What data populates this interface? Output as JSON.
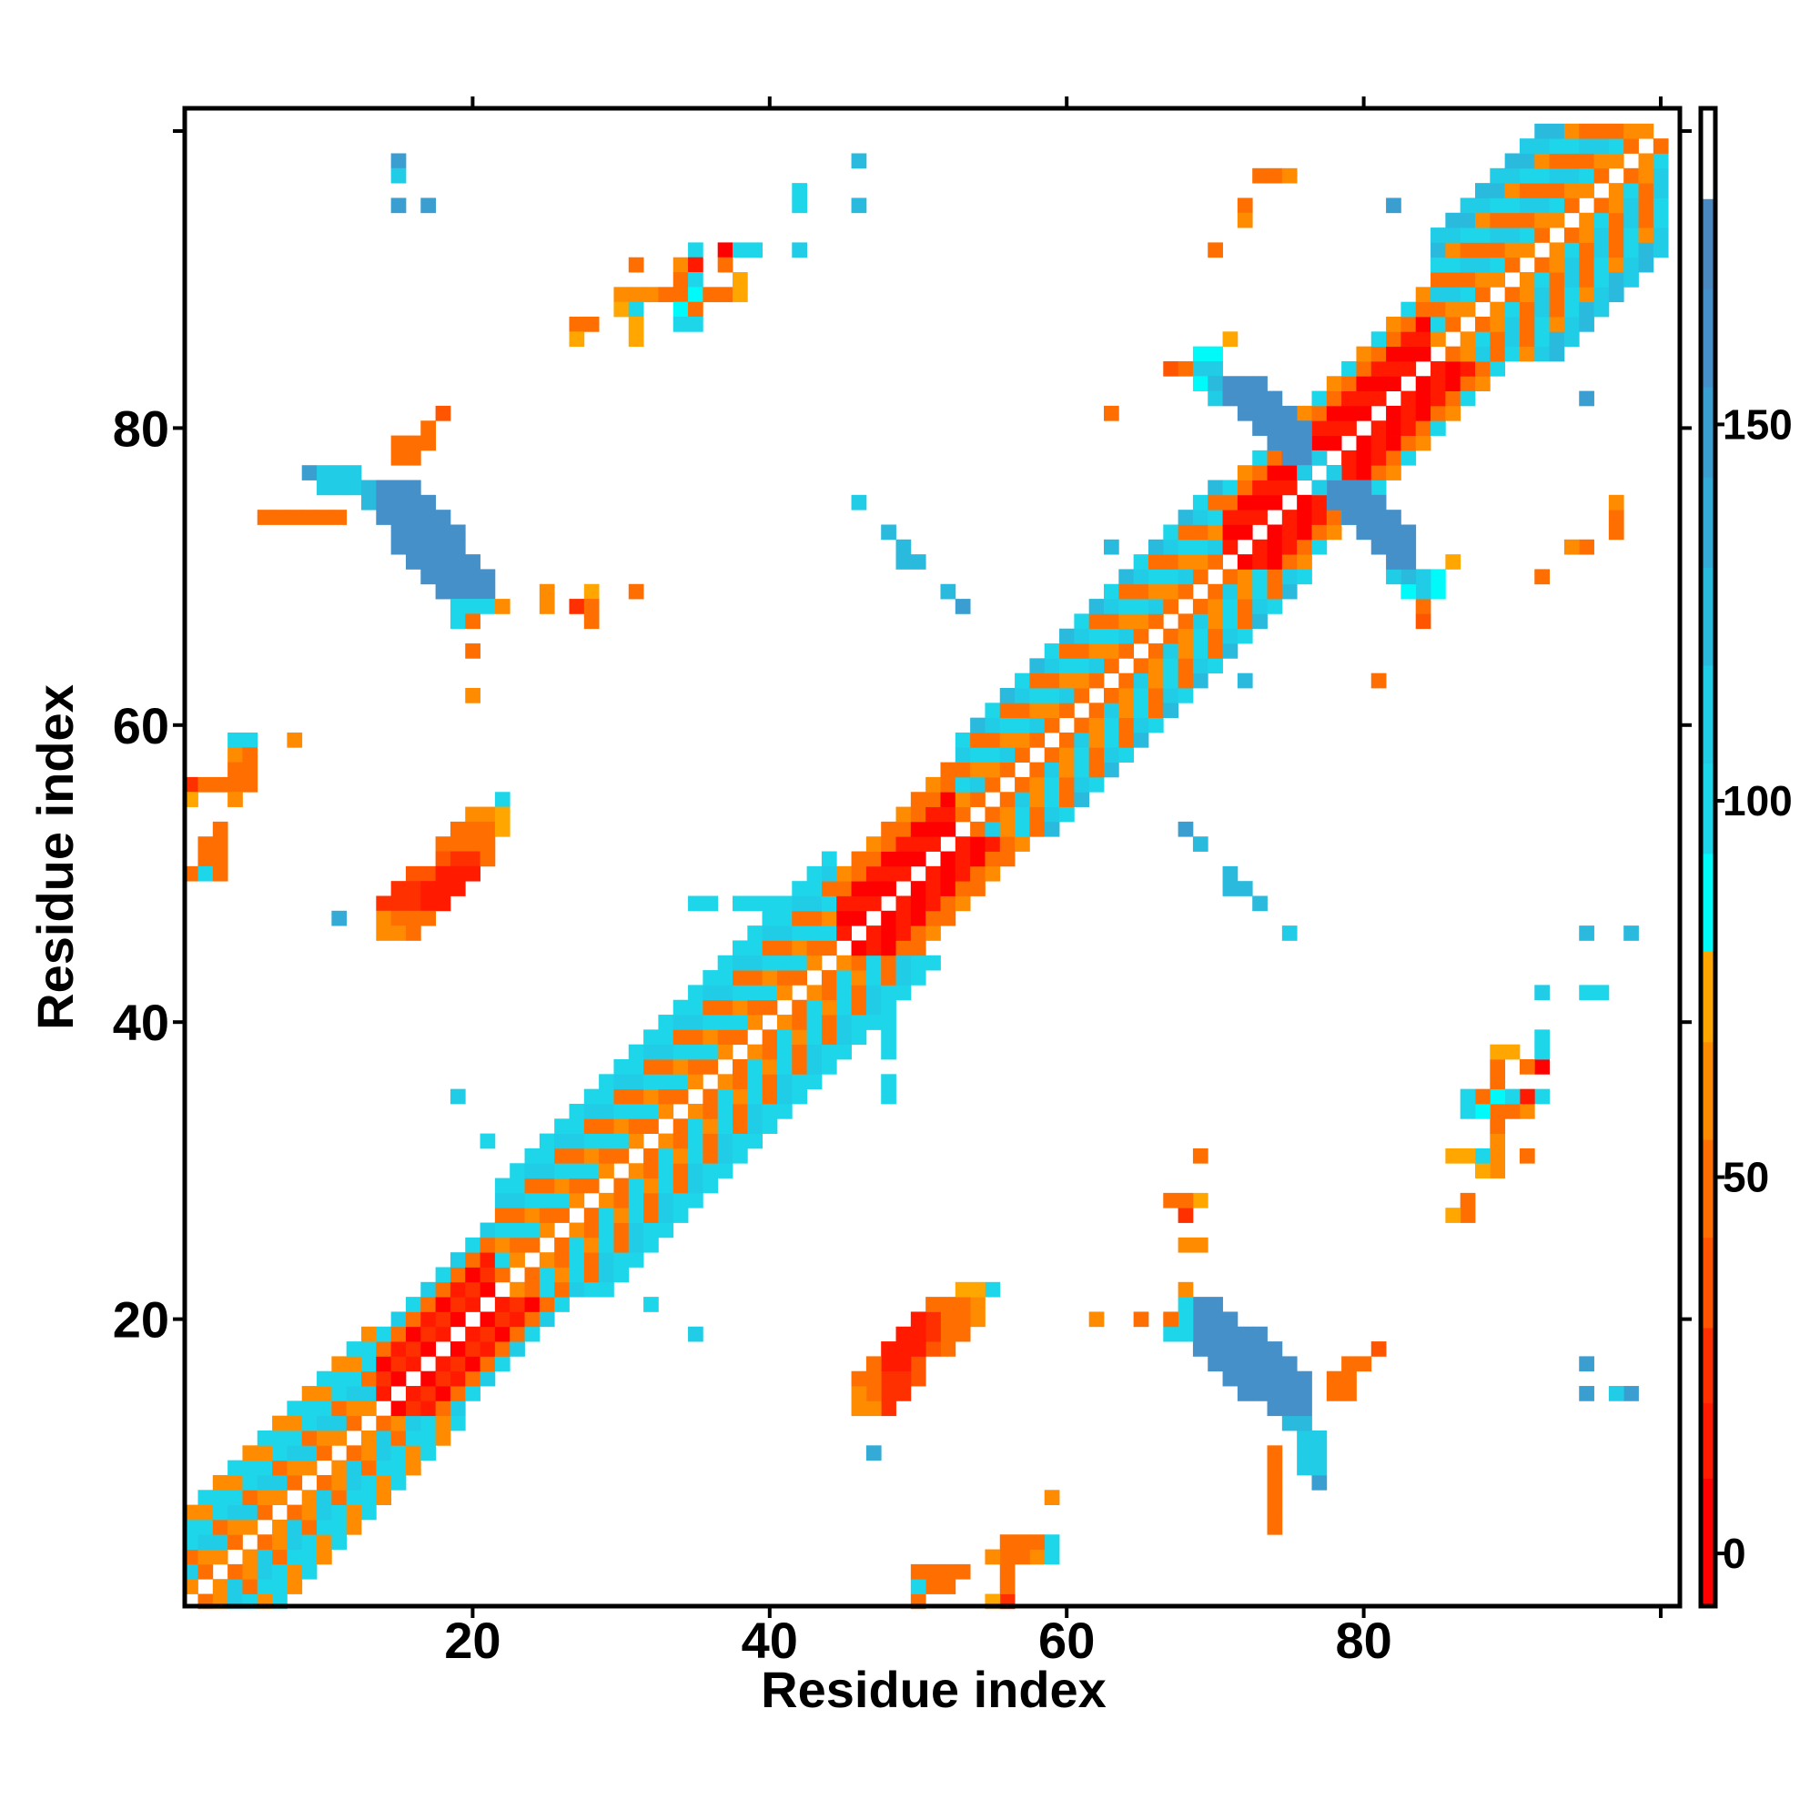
{
  "chart_data": {
    "type": "heatmap",
    "title": "",
    "xlabel": "Residue index",
    "ylabel": "Residue index",
    "xlim": [
      0.5,
      101.5
    ],
    "ylim": [
      0.5,
      101.5
    ],
    "n_residues": 100,
    "x_ticks": [
      20,
      40,
      60,
      80,
      100
    ],
    "x_tick_labels": [
      "20",
      "40",
      "60",
      "80",
      ""
    ],
    "y_ticks": [
      20,
      40,
      60,
      80,
      100
    ],
    "y_tick_labels": [
      "20",
      "40",
      "60",
      "80",
      ""
    ],
    "colorbar": {
      "range": [
        -7,
        192
      ],
      "ticks": [
        0,
        50,
        100,
        150
      ],
      "tick_labels": [
        "0",
        "50",
        "100",
        "150"
      ],
      "colormap": [
        {
          "max": 10,
          "color": "#ff0000"
        },
        {
          "max": 20,
          "color": "#ff1a00"
        },
        {
          "max": 30,
          "color": "#ff3000"
        },
        {
          "max": 42,
          "color": "#ff5500"
        },
        {
          "max": 55,
          "color": "#ff6e00"
        },
        {
          "max": 68,
          "color": "#ff8c00"
        },
        {
          "max": 80,
          "color": "#ffa600"
        },
        {
          "max": 93,
          "color": "#00fafa"
        },
        {
          "max": 105,
          "color": "#1ed6ea"
        },
        {
          "max": 118,
          "color": "#20cce6"
        },
        {
          "max": 131,
          "color": "#2abade"
        },
        {
          "max": 143,
          "color": "#33abd6"
        },
        {
          "max": 155,
          "color": "#3b9ed0"
        },
        {
          "max": 168,
          "color": "#4590c8"
        },
        {
          "max": 180,
          "color": "#4a88c0"
        },
        {
          "max": 192,
          "color": "#ffffff"
        }
      ]
    },
    "symmetric": true,
    "diagonal_segments": [
      {
        "start": 1,
        "end": 13,
        "offsets": [
          50,
          60,
          110,
          100,
          60,
          105
        ],
        "offsets_alt": [
          60,
          110,
          50,
          105,
          100,
          65
        ]
      },
      {
        "start": 14,
        "end": 21,
        "offsets": [
          15,
          25,
          10,
          45,
          100
        ],
        "offsets_alt": [
          10,
          30,
          20,
          50,
          110
        ]
      },
      {
        "start": 22,
        "end": 44,
        "offsets": [
          50,
          105,
          60,
          100,
          45,
          110,
          95
        ],
        "offsets_alt": [
          60,
          45,
          100,
          55,
          110,
          100,
          105
        ]
      },
      {
        "start": 45,
        "end": 52,
        "offsets": [
          10,
          15,
          8,
          45,
          55
        ],
        "offsets_alt": [
          15,
          10,
          20,
          50,
          60
        ]
      },
      {
        "start": 53,
        "end": 70,
        "offsets": [
          45,
          110,
          60,
          105,
          50,
          120
        ],
        "offsets_alt": [
          55,
          60,
          100,
          45,
          115,
          105
        ]
      },
      {
        "start": 71,
        "end": 84,
        "offsets": [
          8,
          15,
          10,
          50,
          60
        ],
        "offsets_alt": [
          12,
          8,
          20,
          45,
          100
        ]
      },
      {
        "start": 85,
        "end": 100,
        "offsets": [
          50,
          60,
          110,
          45,
          105,
          65,
          110,
          120
        ],
        "offsets_alt": [
          60,
          105,
          45,
          110,
          55,
          100,
          120,
          110
        ]
      }
    ],
    "row_runs_columns": [
      "y",
      "x_start",
      "x_end",
      "value"
    ],
    "row_runs": [
      [
        77,
        9,
        9,
        150
      ],
      [
        77,
        10,
        12,
        115
      ],
      [
        76,
        10,
        12,
        110
      ],
      [
        76,
        13,
        13,
        130
      ],
      [
        76,
        14,
        16,
        160
      ],
      [
        75,
        13,
        13,
        125
      ],
      [
        75,
        14,
        17,
        160
      ],
      [
        74,
        6,
        7,
        45
      ],
      [
        74,
        8,
        9,
        55
      ],
      [
        74,
        10,
        11,
        45
      ],
      [
        74,
        14,
        18,
        160
      ],
      [
        73,
        15,
        19,
        160
      ],
      [
        72,
        15,
        19,
        160
      ],
      [
        71,
        16,
        20,
        160
      ],
      [
        70,
        17,
        21,
        165
      ],
      [
        69,
        18,
        21,
        160
      ],
      [
        68,
        19,
        21,
        100
      ],
      [
        68,
        22,
        22,
        60
      ],
      [
        67,
        19,
        19,
        100
      ],
      [
        67,
        20,
        20,
        55
      ],
      [
        65,
        20,
        20,
        50
      ],
      [
        62,
        20,
        20,
        60
      ],
      [
        81,
        18,
        18,
        40
      ],
      [
        80,
        17,
        17,
        45
      ],
      [
        79,
        15,
        17,
        50
      ],
      [
        78,
        15,
        16,
        45
      ],
      [
        55,
        22,
        22,
        105
      ],
      [
        54,
        20,
        21,
        60
      ],
      [
        54,
        22,
        22,
        72
      ],
      [
        53,
        19,
        21,
        55
      ],
      [
        53,
        22,
        22,
        70
      ],
      [
        52,
        18,
        19,
        50
      ],
      [
        52,
        20,
        21,
        55
      ],
      [
        51,
        18,
        18,
        40
      ],
      [
        51,
        19,
        20,
        28
      ],
      [
        51,
        21,
        21,
        50
      ],
      [
        50,
        16,
        17,
        35
      ],
      [
        50,
        18,
        20,
        20
      ],
      [
        49,
        15,
        16,
        30
      ],
      [
        49,
        17,
        19,
        15
      ],
      [
        48,
        14,
        16,
        25
      ],
      [
        48,
        17,
        18,
        15
      ],
      [
        47,
        14,
        14,
        65
      ],
      [
        47,
        15,
        17,
        45
      ],
      [
        46,
        14,
        15,
        60
      ],
      [
        46,
        16,
        16,
        55
      ],
      [
        92,
        35,
        35,
        105
      ],
      [
        92,
        37,
        37,
        8
      ],
      [
        92,
        38,
        39,
        95
      ],
      [
        92,
        42,
        42,
        110
      ],
      [
        91,
        31,
        31,
        50
      ],
      [
        91,
        34,
        34,
        60
      ],
      [
        91,
        35,
        35,
        20
      ],
      [
        91,
        37,
        37,
        50
      ],
      [
        90,
        34,
        34,
        55
      ],
      [
        90,
        35,
        35,
        105
      ],
      [
        90,
        38,
        38,
        70
      ],
      [
        89,
        30,
        32,
        60
      ],
      [
        89,
        33,
        33,
        45
      ],
      [
        89,
        34,
        34,
        55
      ],
      [
        89,
        35,
        35,
        90
      ],
      [
        89,
        36,
        37,
        45
      ],
      [
        89,
        38,
        38,
        70
      ],
      [
        88,
        30,
        30,
        72
      ],
      [
        88,
        31,
        31,
        95
      ],
      [
        88,
        34,
        34,
        90
      ],
      [
        88,
        35,
        35,
        55
      ],
      [
        87,
        27,
        27,
        55
      ],
      [
        87,
        28,
        28,
        45
      ],
      [
        87,
        31,
        31,
        70
      ],
      [
        87,
        34,
        35,
        105
      ],
      [
        86,
        27,
        27,
        70
      ],
      [
        86,
        31,
        31,
        70
      ],
      [
        98,
        15,
        15,
        150
      ],
      [
        97,
        15,
        15,
        115
      ],
      [
        95,
        15,
        15,
        150
      ],
      [
        95,
        17,
        17,
        150
      ],
      [
        98,
        46,
        46,
        120
      ],
      [
        96,
        42,
        42,
        105
      ],
      [
        95,
        42,
        42,
        95
      ],
      [
        95,
        46,
        46,
        120
      ],
      [
        97,
        73,
        74,
        52
      ],
      [
        97,
        75,
        75,
        65
      ],
      [
        95,
        72,
        72,
        45
      ],
      [
        94,
        72,
        72,
        62
      ],
      [
        92,
        70,
        70,
        55
      ],
      [
        86,
        71,
        71,
        70
      ],
      [
        95,
        82,
        82,
        150
      ],
      [
        81,
        63,
        63,
        45
      ],
      [
        85,
        69,
        70,
        90
      ],
      [
        84,
        67,
        67,
        40
      ],
      [
        84,
        68,
        68,
        55
      ],
      [
        84,
        69,
        70,
        110
      ],
      [
        83,
        69,
        69,
        90
      ],
      [
        83,
        70,
        70,
        125
      ],
      [
        83,
        71,
        73,
        160
      ],
      [
        82,
        70,
        70,
        110
      ],
      [
        82,
        71,
        74,
        160
      ],
      [
        81,
        72,
        75,
        160
      ],
      [
        80,
        73,
        76,
        160
      ],
      [
        79,
        74,
        76,
        160
      ],
      [
        78,
        75,
        76,
        160
      ],
      [
        78,
        77,
        77,
        110
      ],
      [
        77,
        76,
        76,
        110
      ],
      [
        75,
        46,
        46,
        115
      ],
      [
        73,
        48,
        48,
        125
      ],
      [
        72,
        49,
        49,
        125
      ],
      [
        71,
        49,
        50,
        120
      ],
      [
        69,
        52,
        52,
        130
      ],
      [
        68,
        53,
        53,
        150
      ],
      [
        72,
        63,
        63,
        120
      ],
      [
        69,
        25,
        25,
        65
      ],
      [
        69,
        28,
        28,
        70
      ],
      [
        69,
        31,
        31,
        45
      ],
      [
        68,
        25,
        25,
        65
      ],
      [
        68,
        27,
        27,
        30
      ],
      [
        68,
        28,
        28,
        45
      ],
      [
        67,
        28,
        28,
        55
      ],
      [
        59,
        8,
        8,
        65
      ],
      [
        59,
        4,
        5,
        105
      ],
      [
        58,
        4,
        4,
        60
      ],
      [
        58,
        5,
        5,
        50
      ],
      [
        57,
        4,
        4,
        45
      ],
      [
        57,
        5,
        5,
        50
      ],
      [
        56,
        1,
        1,
        30
      ],
      [
        56,
        2,
        3,
        50
      ],
      [
        56,
        4,
        4,
        45
      ],
      [
        56,
        5,
        5,
        55
      ],
      [
        55,
        1,
        1,
        70
      ],
      [
        55,
        4,
        4,
        60
      ],
      [
        53,
        3,
        3,
        50
      ],
      [
        52,
        2,
        3,
        50
      ],
      [
        51,
        2,
        3,
        50
      ],
      [
        50,
        1,
        1,
        45
      ],
      [
        50,
        2,
        2,
        95
      ],
      [
        50,
        3,
        3,
        55
      ],
      [
        47,
        11,
        11,
        140
      ],
      [
        35,
        19,
        19,
        115
      ],
      [
        32,
        21,
        21,
        95
      ],
      [
        48,
        35,
        36,
        105
      ],
      [
        48,
        38,
        39,
        100
      ],
      [
        48,
        40,
        40,
        105
      ],
      [
        47,
        40,
        40,
        95
      ]
    ]
  }
}
